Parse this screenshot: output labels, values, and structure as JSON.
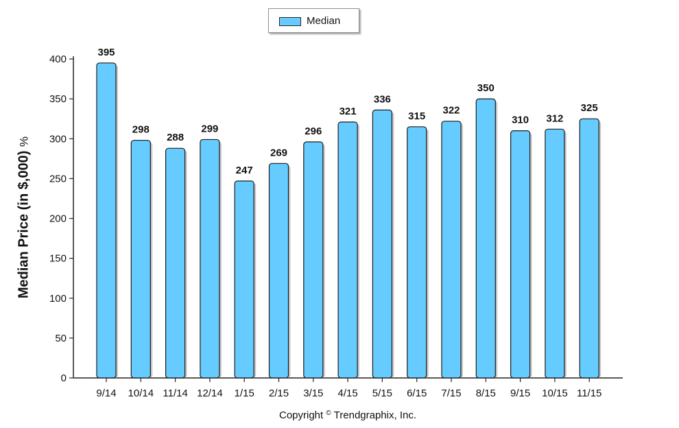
{
  "legend": {
    "label": "Median"
  },
  "ylabel_main": "Median Price (in $,000)",
  "ylabel_suffix": "%",
  "copyright": {
    "prefix": "Copyright",
    "symbol": "©",
    "suffix": "Trendgraphix, Inc."
  },
  "colors": {
    "bar": "#66ccff",
    "bar_edge": "#1a1a1a",
    "axis": "#222222"
  },
  "chart_data": {
    "type": "bar",
    "categories": [
      "9/14",
      "10/14",
      "11/14",
      "12/14",
      "1/15",
      "2/15",
      "3/15",
      "4/15",
      "5/15",
      "6/15",
      "7/15",
      "8/15",
      "9/15",
      "10/15",
      "11/15"
    ],
    "series": [
      {
        "name": "Median",
        "values": [
          395,
          298,
          288,
          299,
          247,
          269,
          296,
          321,
          336,
          315,
          322,
          350,
          310,
          312,
          325
        ]
      }
    ],
    "xlabel": "",
    "ylabel": "Median Price (in $,000) %",
    "ylim": [
      0,
      400
    ],
    "yticks": [
      0,
      50,
      100,
      150,
      200,
      250,
      300,
      350,
      400
    ],
    "data_labels": true,
    "grid": false,
    "legend_position": "top-center"
  }
}
